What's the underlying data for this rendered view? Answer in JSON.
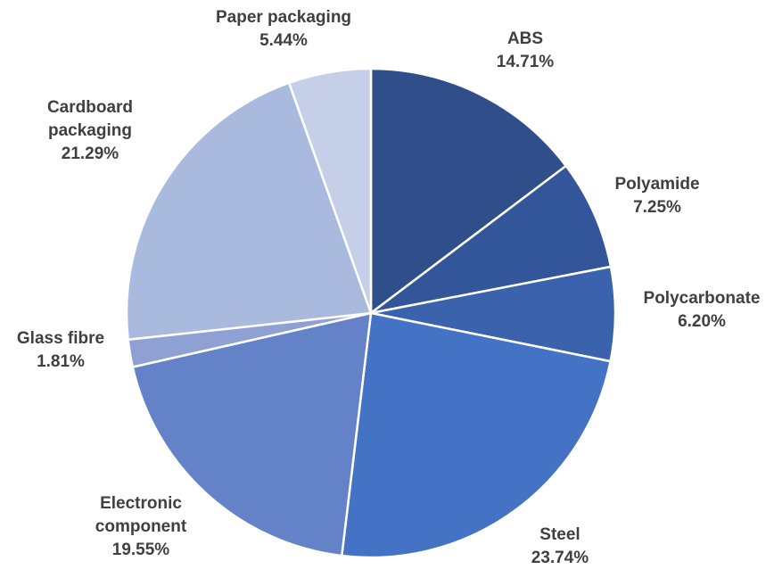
{
  "chart_data": {
    "type": "pie",
    "title": "",
    "start_angle_deg": 0,
    "direction": "clockwise",
    "slices": [
      {
        "label": [
          "ABS"
        ],
        "value_text": "14.71%",
        "value": 14.71,
        "color": "#2f4e8a"
      },
      {
        "label": [
          "Polyamide"
        ],
        "value_text": "7.25%",
        "value": 7.25,
        "color": "#33569a"
      },
      {
        "label": [
          "Polycarbonate"
        ],
        "value_text": "6.20%",
        "value": 6.2,
        "color": "#3b62ad"
      },
      {
        "label": [
          "Steel"
        ],
        "value_text": "23.74%",
        "value": 23.74,
        "color": "#4472c4"
      },
      {
        "label": [
          "Electronic",
          "component"
        ],
        "value_text": "19.55%",
        "value": 19.55,
        "color": "#6482c8"
      },
      {
        "label": [
          "Glass fibre"
        ],
        "value_text": "1.81%",
        "value": 1.81,
        "color": "#8ea0d4"
      },
      {
        "label": [
          "Cardboard",
          "packaging"
        ],
        "value_text": "21.29%",
        "value": 21.29,
        "color": "#aab9de"
      },
      {
        "label": [
          "Paper packaging"
        ],
        "value_text": "5.44%",
        "value": 5.44,
        "color": "#c5cfe7"
      }
    ]
  }
}
